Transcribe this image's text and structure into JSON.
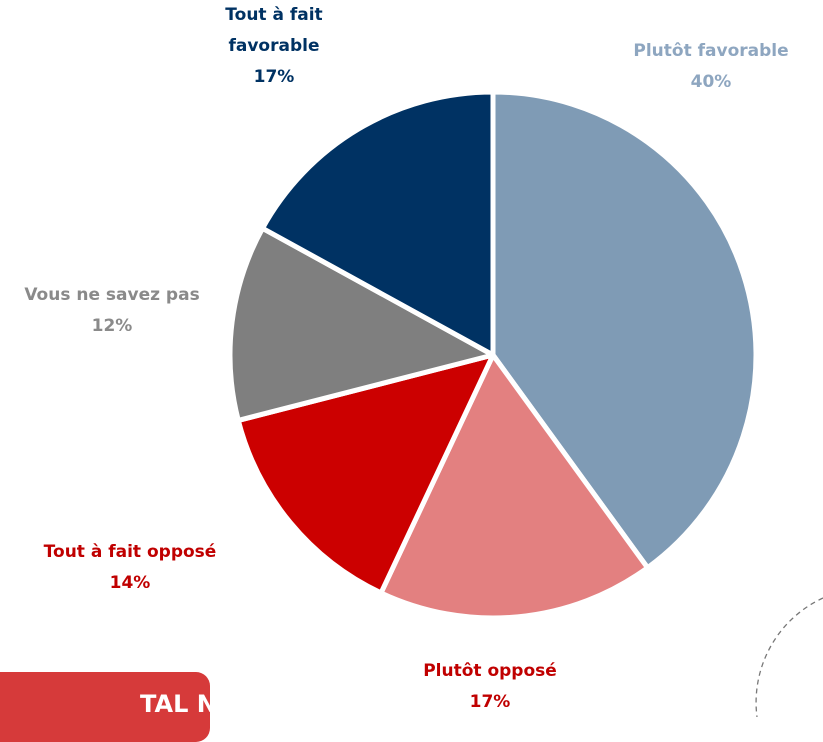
{
  "chart_data": {
    "type": "pie",
    "categories": [
      "Plutôt favorable",
      "Plutôt opposé",
      "Tout à fait opposé",
      "Vous ne savez pas",
      "Tout à fait favorable"
    ],
    "values": [
      40,
      17,
      14,
      12,
      17
    ],
    "value_labels": [
      "40%",
      "17%",
      "14%",
      "12%",
      "17%"
    ],
    "colors": [
      "#7f9bb5",
      "#e38080",
      "#cc0000",
      "#7f7f7f",
      "#003263"
    ],
    "label_colors": [
      "#8ea6c0",
      "#c00000",
      "#c00000",
      "#8a8a8a",
      "#003263"
    ]
  },
  "badge": {
    "text": "TAL Non"
  }
}
